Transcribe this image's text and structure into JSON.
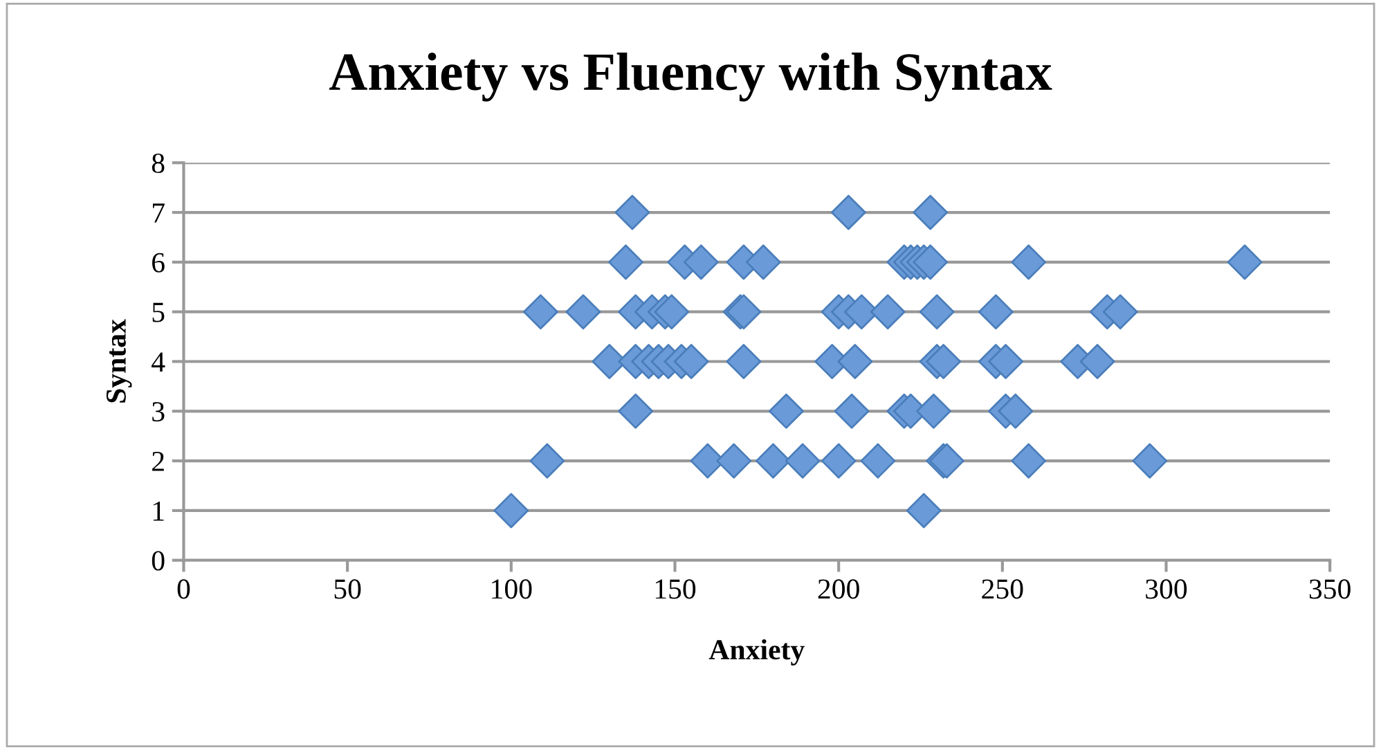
{
  "chart_data": {
    "type": "scatter",
    "title": "Anxiety vs Fluency with Syntax",
    "xlabel": "Anxiety",
    "ylabel": "Syntax",
    "series": [
      {
        "color": "#6a9bd8",
        "x": [
          137,
          203,
          228,
          135,
          153,
          158,
          171,
          177,
          220,
          222,
          224,
          226,
          228,
          258,
          324,
          109,
          122,
          138,
          143,
          147,
          149,
          170,
          171,
          200,
          203,
          207,
          215,
          230,
          248,
          282,
          286,
          130,
          138,
          142,
          145,
          148,
          152,
          155,
          171,
          198,
          205,
          230,
          232,
          248,
          251,
          273,
          279,
          138,
          184,
          204,
          220,
          222,
          229,
          251,
          254,
          111,
          160,
          168,
          180,
          189,
          200,
          212,
          232,
          233,
          258,
          295,
          100,
          226
        ],
        "values": [
          7,
          7,
          7,
          6,
          6,
          6,
          6,
          6,
          6,
          6,
          6,
          6,
          6,
          6,
          6,
          5,
          5,
          5,
          5,
          5,
          5,
          5,
          5,
          5,
          5,
          5,
          5,
          5,
          5,
          5,
          5,
          4,
          4,
          4,
          4,
          4,
          4,
          4,
          4,
          4,
          4,
          4,
          4,
          4,
          4,
          4,
          4,
          3,
          3,
          3,
          3,
          3,
          3,
          3,
          3,
          2,
          2,
          2,
          2,
          2,
          2,
          2,
          2,
          2,
          2,
          2,
          1,
          1
        ]
      }
    ],
    "marker": "diamond",
    "grid": "y",
    "xlim": [
      0,
      350
    ],
    "xticks": [
      0,
      50,
      100,
      150,
      200,
      250,
      300,
      350
    ],
    "ylim": [
      0,
      8
    ],
    "yticks": [
      0,
      1,
      2,
      3,
      4,
      5,
      6,
      7,
      8
    ]
  }
}
